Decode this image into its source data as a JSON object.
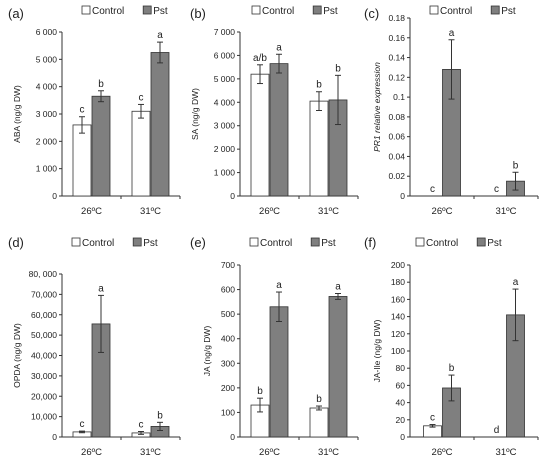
{
  "colors": {
    "control": "#ffffff",
    "pst": "#7f7f7f",
    "axis": "#333333",
    "error": "#333333"
  },
  "chart_data": [
    {
      "type": "bar",
      "panel": "(a)",
      "ylabel": "ABA (ng/g DW)",
      "categories": [
        "26ºC",
        "31ºC"
      ],
      "ylim": [
        0,
        6000
      ],
      "yticks": [
        "0",
        "1 000",
        "2 000",
        "3 000",
        "4 000",
        "5 000",
        "6 000"
      ],
      "series": [
        {
          "name": "Control",
          "values": [
            2600,
            3100
          ],
          "errors": [
            300,
            250
          ],
          "sig": [
            "c",
            "c"
          ]
        },
        {
          "name": "Pst",
          "values": [
            3650,
            5250
          ],
          "errors": [
            200,
            380
          ],
          "sig": [
            "b",
            "a"
          ]
        }
      ]
    },
    {
      "type": "bar",
      "panel": "(b)",
      "ylabel": "SA (ng/g DW)",
      "categories": [
        "26ºC",
        "31ºC"
      ],
      "ylim": [
        0,
        7000
      ],
      "yticks": [
        "0",
        "1 000",
        "2 000",
        "3 000",
        "4 000",
        "5 000",
        "6 000",
        "7 000"
      ],
      "series": [
        {
          "name": "Control",
          "values": [
            5200,
            4050
          ],
          "errors": [
            400,
            400
          ],
          "sig": [
            "a/b",
            "b"
          ]
        },
        {
          "name": "Pst",
          "values": [
            5650,
            4100
          ],
          "errors": [
            400,
            1050
          ],
          "sig": [
            "a",
            "b"
          ]
        }
      ]
    },
    {
      "type": "bar",
      "panel": "(c)",
      "ylabel": "PR1 relative expression",
      "categories": [
        "26ºC",
        "31ºC"
      ],
      "ylim": [
        0,
        0.18
      ],
      "yticks": [
        "0",
        "0.02",
        "0.04",
        "0.06",
        "0.08",
        "0.1",
        "0.12",
        "0.14",
        "0.16",
        "0.18"
      ],
      "series": [
        {
          "name": "Control",
          "values": [
            0,
            0
          ],
          "errors": [
            0,
            0
          ],
          "sig": [
            "c",
            "c"
          ]
        },
        {
          "name": "Pst",
          "values": [
            0.128,
            0.015
          ],
          "errors": [
            0.03,
            0.009
          ],
          "sig": [
            "a",
            "b"
          ]
        }
      ]
    },
    {
      "type": "bar",
      "panel": "(d)",
      "ylabel": "OPDA (ng/g DW)",
      "categories": [
        "26ºC",
        "31ºC"
      ],
      "ylim": [
        0,
        80000
      ],
      "yticks": [
        "0",
        "10,000",
        "20,000",
        "30,000",
        "40,000",
        "50,000",
        "60,000",
        "70,000",
        "80, 000"
      ],
      "series": [
        {
          "name": "Control",
          "values": [
            2500,
            2000
          ],
          "errors": [
            400,
            700
          ],
          "sig": [
            "c",
            "c"
          ]
        },
        {
          "name": "Pst",
          "values": [
            55500,
            5200
          ],
          "errors": [
            14000,
            2000
          ],
          "sig": [
            "a",
            "b"
          ]
        }
      ]
    },
    {
      "type": "bar",
      "panel": "(e)",
      "ylabel": "JA (ng/g DW)",
      "categories": [
        "26ºC",
        "31ºC"
      ],
      "ylim": [
        0,
        700
      ],
      "yticks": [
        "0",
        "100",
        "200",
        "300",
        "400",
        "500",
        "600",
        "700"
      ],
      "series": [
        {
          "name": "Control",
          "values": [
            130,
            118
          ],
          "errors": [
            28,
            8
          ],
          "sig": [
            "b",
            "b"
          ]
        },
        {
          "name": "Pst",
          "values": [
            530,
            572
          ],
          "errors": [
            60,
            12
          ],
          "sig": [
            "a",
            "a"
          ]
        }
      ]
    },
    {
      "type": "bar",
      "panel": "(f)",
      "ylabel": "JA-Ile (ng/g DW)",
      "categories": [
        "26ºC",
        "31ºC"
      ],
      "ylim": [
        0,
        200
      ],
      "yticks": [
        "0",
        "20",
        "40",
        "60",
        "80",
        "100",
        "120",
        "140",
        "160",
        "180",
        "200"
      ],
      "series": [
        {
          "name": "Control",
          "values": [
            13,
            0
          ],
          "errors": [
            1.5,
            0
          ],
          "sig": [
            "c",
            "d"
          ]
        },
        {
          "name": "Pst",
          "values": [
            57,
            142
          ],
          "errors": [
            15,
            30
          ],
          "sig": [
            "b",
            "a"
          ]
        }
      ]
    }
  ]
}
